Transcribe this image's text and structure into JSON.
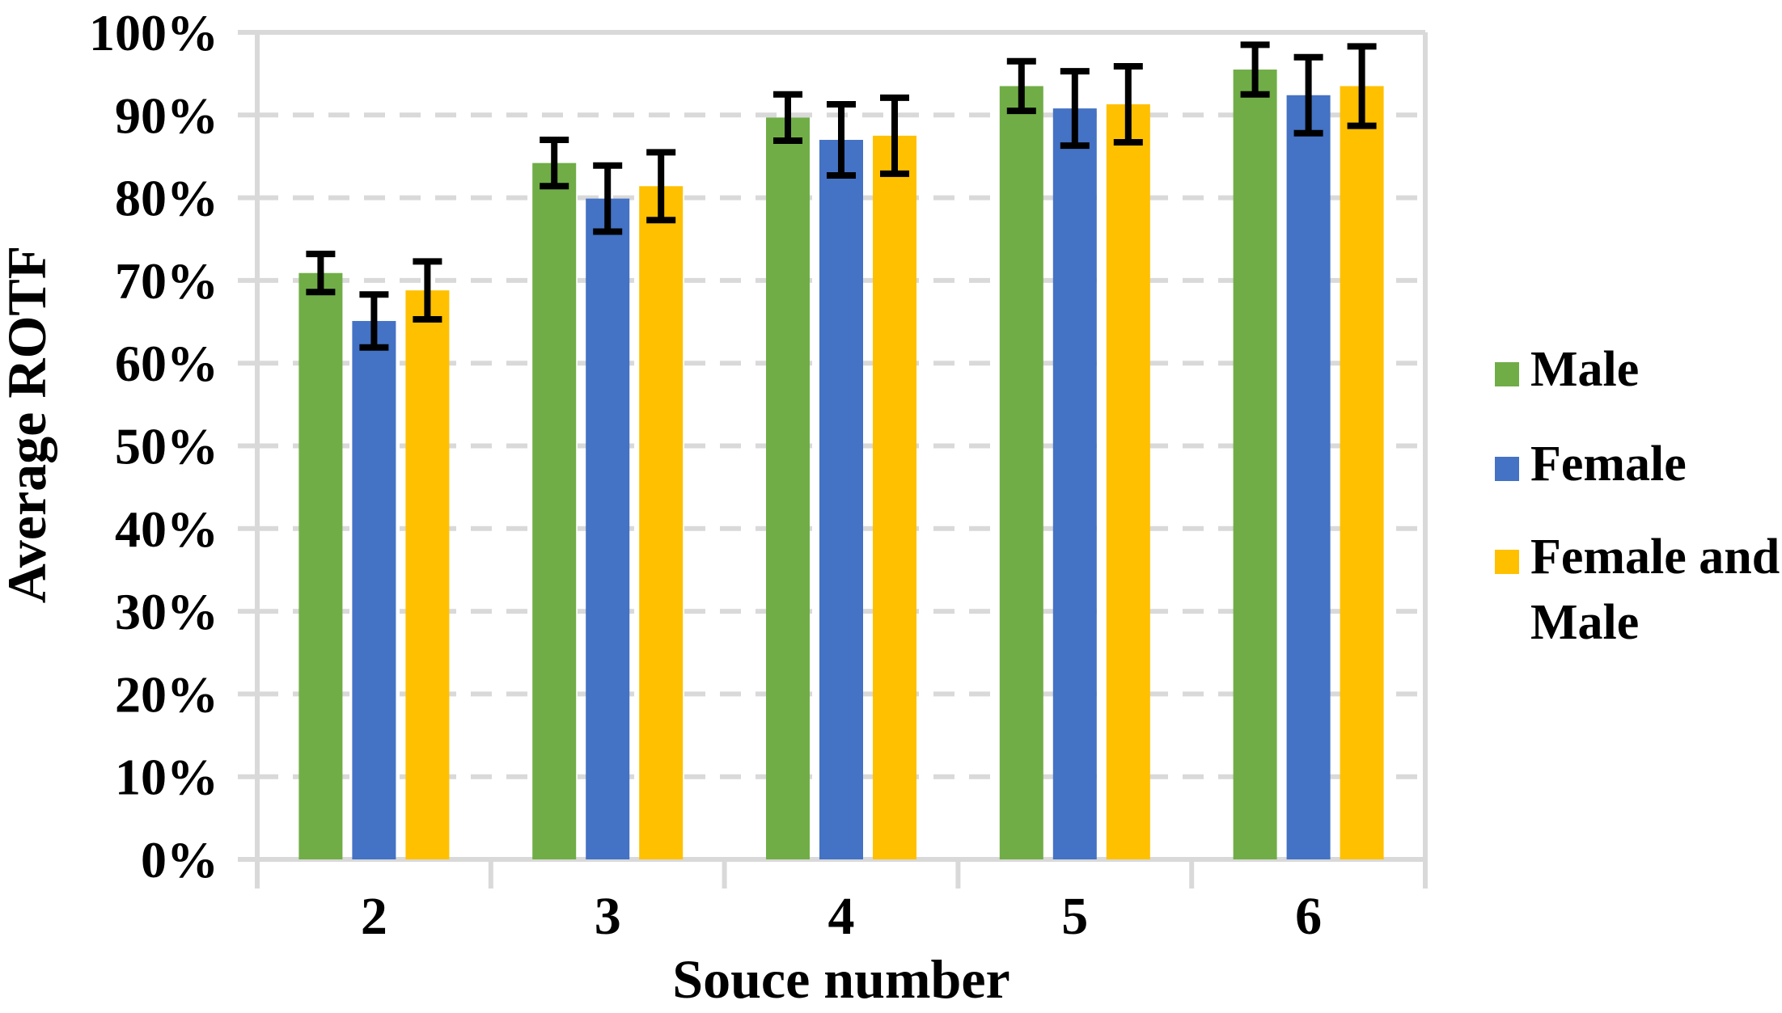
{
  "chart_data": {
    "type": "bar",
    "title": "",
    "xlabel": "Souce number",
    "ylabel": "Average ROTF",
    "categories": [
      "2",
      "3",
      "4",
      "5",
      "6"
    ],
    "series": [
      {
        "name": "Male",
        "color": "#70AD47",
        "values": [
          70.9,
          84.2,
          89.7,
          93.5,
          95.5
        ],
        "errors": [
          2.3,
          2.8,
          2.8,
          3.0,
          3.0
        ]
      },
      {
        "name": "Female",
        "color": "#4472C4",
        "values": [
          65.1,
          79.9,
          87.0,
          90.8,
          92.4
        ],
        "errors": [
          3.2,
          4.0,
          4.3,
          4.5,
          4.6
        ]
      },
      {
        "name": "Female and Male",
        "color": "#FFC000",
        "label_lines": [
          "Female and",
          "Male"
        ],
        "values": [
          68.8,
          81.4,
          87.5,
          91.3,
          93.5
        ],
        "errors": [
          3.5,
          4.1,
          4.6,
          4.6,
          4.8
        ]
      }
    ],
    "y_axis": {
      "min": 0,
      "max": 100,
      "step": 10,
      "format": "percent",
      "tick_labels": [
        "0%",
        "10%",
        "20%",
        "30%",
        "40%",
        "50%",
        "60%",
        "70%",
        "80%",
        "90%",
        "100%"
      ]
    },
    "grid": "horizontal-dashed",
    "legend_position": "right",
    "error_bars": true,
    "colors": {
      "gridline": "#D9D9D9",
      "axis": "#D9D9D9",
      "error_bar": "#000000",
      "text": "#000000",
      "background": "#FFFFFF"
    }
  }
}
